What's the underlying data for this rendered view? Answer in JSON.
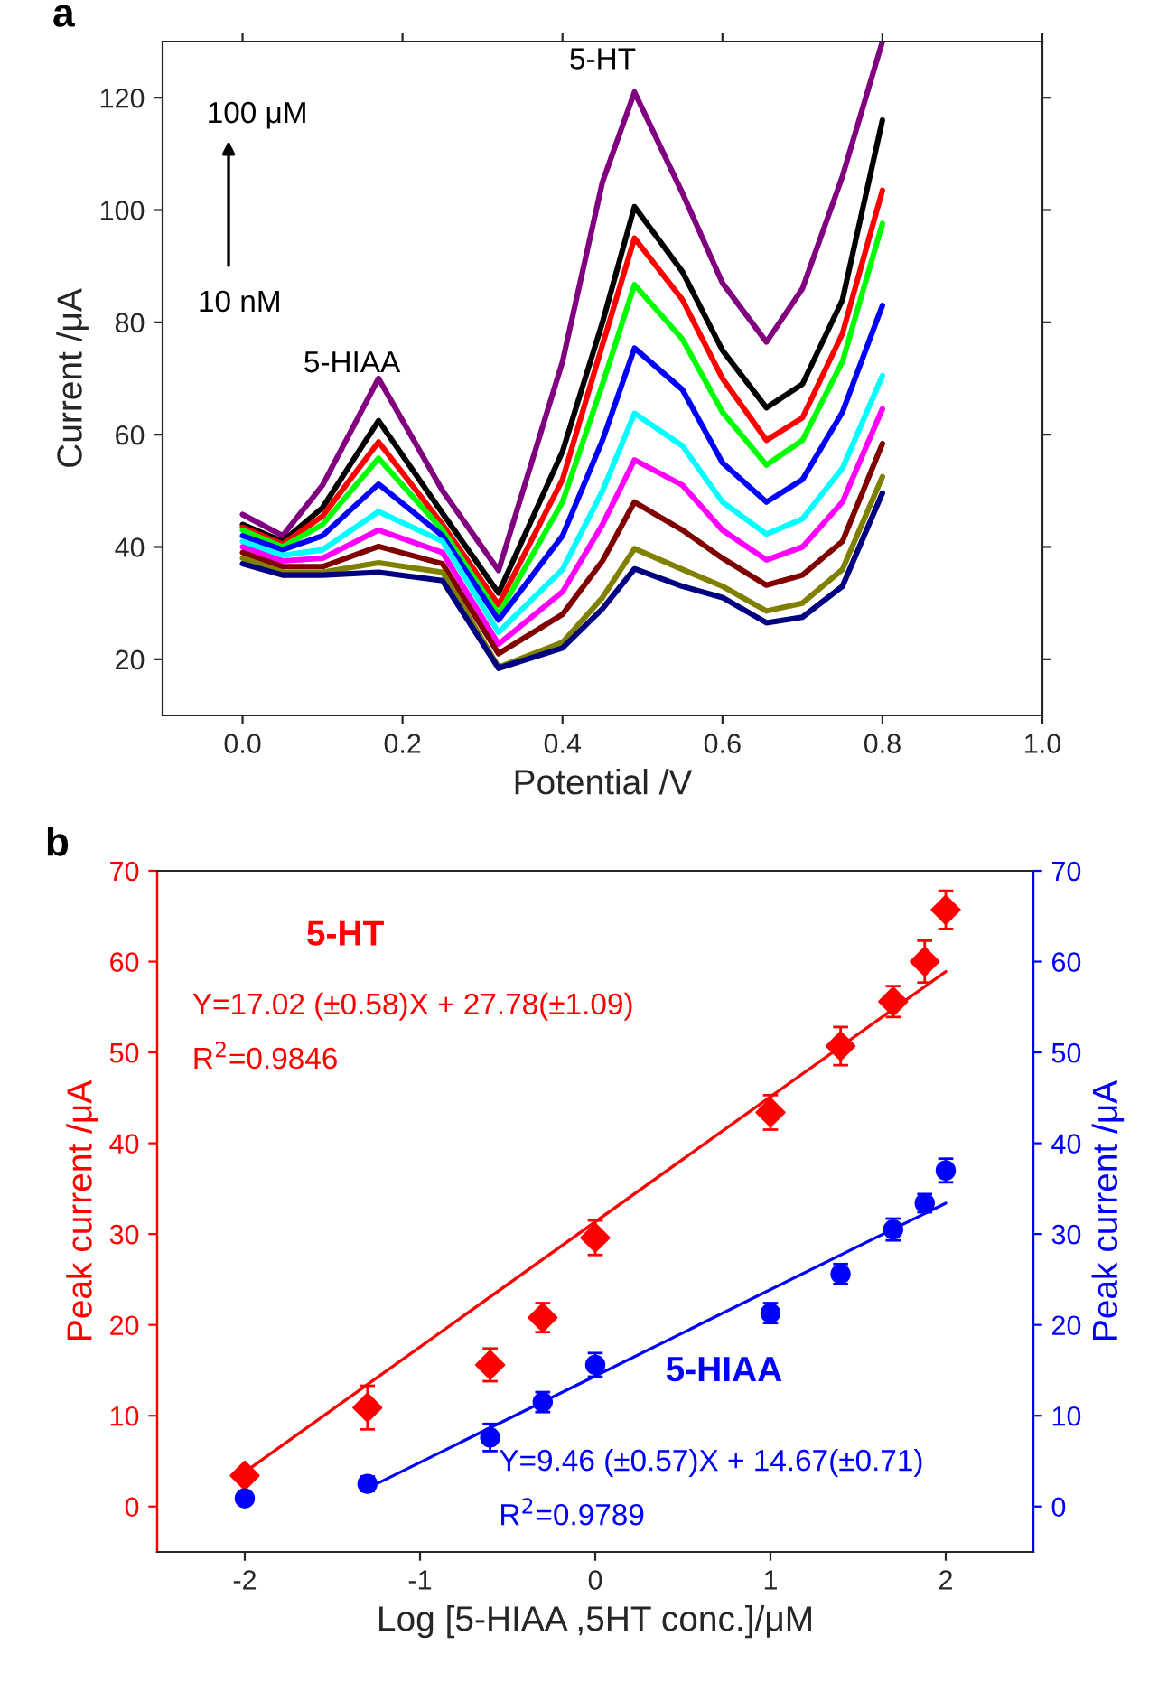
{
  "chart_data": [
    {
      "type": "line",
      "xlabel": "Potential /V",
      "ylabel": "Current /μA",
      "xlim": [
        -0.1,
        1.0
      ],
      "xticks": [
        {
          "value": 0.0,
          "label": "0.0"
        },
        {
          "value": 0.2,
          "label": "0.2"
        },
        {
          "value": 0.4,
          "label": "0.4"
        },
        {
          "value": 0.6,
          "label": "0.6"
        },
        {
          "value": 0.8,
          "label": "0.8"
        },
        {
          "value": 1.0,
          "label": "1.0"
        }
      ],
      "ylim": [
        10,
        130
      ],
      "yticks": [
        20,
        40,
        60,
        80,
        100,
        120
      ],
      "grid": false,
      "legend": false,
      "x": [
        0.0,
        0.05,
        0.1,
        0.17,
        0.25,
        0.32,
        0.4,
        0.45,
        0.49,
        0.55,
        0.6,
        0.655,
        0.7,
        0.75,
        0.8
      ],
      "series": [
        {
          "color": "#800080",
          "values": [
            45.8,
            42,
            51,
            70,
            50,
            35.8,
            73,
            105,
            121,
            103,
            87,
            76.5,
            86,
            106,
            130
          ]
        },
        {
          "color": "#000000",
          "values": [
            44,
            41,
            47,
            62.5,
            46,
            31.8,
            57,
            80,
            100.6,
            89,
            75,
            64.8,
            69,
            84,
            116
          ]
        },
        {
          "color": "#ff0000",
          "values": [
            43.5,
            40.5,
            45.5,
            58.7,
            44,
            29.7,
            52,
            76,
            95,
            84,
            70,
            59,
            63,
            78,
            103.5
          ]
        },
        {
          "color": "#00ff00",
          "values": [
            43,
            40,
            44,
            55.8,
            43,
            28,
            48,
            69,
            86.7,
            77,
            64,
            54.6,
            59,
            73,
            97.6
          ]
        },
        {
          "color": "#0000ff",
          "values": [
            42,
            39.5,
            42,
            51.2,
            42,
            27,
            42,
            59,
            75.4,
            68,
            55,
            48,
            52,
            64,
            83
          ]
        },
        {
          "color": "#00ffff",
          "values": [
            41,
            38.5,
            39.5,
            46.3,
            41,
            24.8,
            36,
            50,
            63.8,
            58,
            48,
            42.3,
            45,
            54,
            70.5
          ]
        },
        {
          "color": "#ff00ff",
          "values": [
            40,
            37.5,
            38,
            43,
            39,
            22.7,
            32,
            44,
            55.5,
            51,
            43,
            37.7,
            40,
            48,
            64.6
          ]
        },
        {
          "color": "#800000",
          "values": [
            39,
            36.5,
            36.5,
            40.1,
            37,
            21,
            28,
            37.5,
            48,
            43,
            38,
            33.2,
            35,
            41,
            58.4
          ]
        },
        {
          "color": "#808000",
          "values": [
            38,
            35.5,
            35.5,
            37.2,
            35.5,
            18.6,
            23,
            31,
            39.7,
            36,
            33,
            28.6,
            30,
            36,
            52.5
          ]
        },
        {
          "color": "#000080",
          "values": [
            37,
            35,
            35,
            35.5,
            34,
            18.4,
            22,
            29,
            36.1,
            33,
            31,
            26.5,
            27.5,
            33,
            49.6
          ]
        }
      ],
      "annotations": [
        "a",
        "100 μM",
        "10 nM",
        "5-HIAA",
        "5-HT"
      ]
    },
    {
      "type": "scatter",
      "xlabel": "Log [5-HIAA ,5HT conc.]/μM",
      "ylabel": "Peak current /μA",
      "y2label": "Peak current /μA",
      "xlim": [
        -2.5,
        2.5
      ],
      "xticks": [
        -2,
        -1,
        0,
        1,
        2
      ],
      "ylim": [
        -5,
        70
      ],
      "yticks": [
        0,
        10,
        20,
        30,
        40,
        50,
        60,
        70
      ],
      "y2lim": [
        -5,
        70
      ],
      "y2ticks": [
        0,
        10,
        20,
        30,
        40,
        50,
        60,
        70
      ],
      "grid": false,
      "legend": false,
      "series": [
        {
          "type": "scatter",
          "marker": "diamond",
          "color": "#ff0000",
          "x": [
            -2,
            -1.3,
            -0.6,
            -0.3,
            0,
            1,
            1.4,
            1.7,
            1.88,
            2
          ],
          "values": [
            3.4,
            10.9,
            15.6,
            20.8,
            29.6,
            43.4,
            50.7,
            55.6,
            60,
            65.7
          ],
          "errors": [
            null,
            2.4,
            1.8,
            1.6,
            1.9,
            1.9,
            2.1,
            1.7,
            2.3,
            2.1
          ]
        },
        {
          "type": "line",
          "color": "#ff0000",
          "x": [
            -2,
            2
          ],
          "values": [
            3.8,
            58.9
          ]
        },
        {
          "type": "scatter",
          "marker": "circle",
          "axis": "y2",
          "color": "#0000ff",
          "x": [
            -2,
            -1.3,
            -0.6,
            -0.3,
            0,
            1,
            1.4,
            1.7,
            1.88,
            2
          ],
          "values": [
            0.9,
            2.5,
            7.6,
            11.5,
            15.6,
            21.3,
            25.6,
            30.5,
            33.4,
            37
          ],
          "errors": [
            null,
            0.8,
            1.5,
            1.1,
            1.3,
            1.1,
            1.1,
            1.2,
            1.0,
            1.3
          ]
        },
        {
          "type": "line",
          "axis": "y2",
          "color": "#0000ff",
          "x": [
            -1.3,
            2
          ],
          "values": [
            2.0,
            33.4
          ]
        }
      ],
      "annotations": [
        "b",
        "5-HT",
        "Y=17.02 (±0.58)X + 27.78(±1.09)",
        "R$^{2}$=0.9846",
        "5-HIAA",
        "Y=9.46 (±0.57)X + 14.67(±0.71)",
        "R$^{2}$=0.9789"
      ]
    }
  ]
}
